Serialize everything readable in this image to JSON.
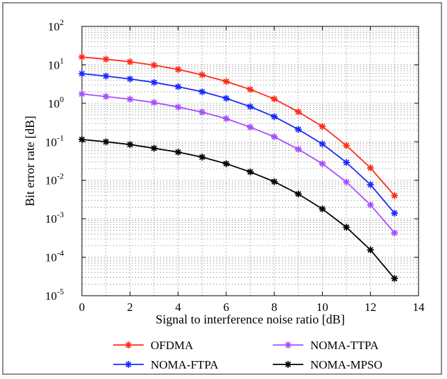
{
  "chart_data": {
    "type": "line",
    "title": "",
    "xlabel": "Signal to interference noise ratio [dB]",
    "ylabel": "Bit error rate [dB]",
    "xlim": [
      0,
      14
    ],
    "ylim": [
      1e-05,
      100
    ],
    "yscale": "log",
    "grid": true,
    "legend_position": "bottom, outside plot, two columns",
    "x_ticks": [
      0,
      2,
      4,
      6,
      8,
      10,
      12,
      14
    ],
    "x_tick_labels": [
      "0",
      "2",
      "4",
      "6",
      "8",
      "10",
      "12",
      "14"
    ],
    "y_ticks": [
      {
        "value": 1e-05,
        "base": "10",
        "exp": "-5"
      },
      {
        "value": 0.0001,
        "base": "10",
        "exp": "-4"
      },
      {
        "value": 0.001,
        "base": "10",
        "exp": "-3"
      },
      {
        "value": 0.01,
        "base": "10",
        "exp": "-2"
      },
      {
        "value": 0.1,
        "base": "10",
        "exp": "-1"
      },
      {
        "value": 1,
        "base": "10",
        "exp": "0"
      },
      {
        "value": 10,
        "base": "10",
        "exp": "1"
      },
      {
        "value": 100,
        "base": "10",
        "exp": "2"
      }
    ],
    "x": [
      0,
      1,
      2,
      3,
      4,
      5,
      6,
      7,
      8,
      9,
      10,
      11,
      12,
      13
    ],
    "series": [
      {
        "name": "OFDMA",
        "color": "#ff2a1a",
        "values": [
          16,
          14,
          12,
          9.8,
          7.6,
          5.5,
          3.7,
          2.3,
          1.3,
          0.6,
          0.25,
          0.08,
          0.021,
          0.004
        ]
      },
      {
        "name": "NOMA-FTPA",
        "color": "#1a2aff",
        "values": [
          5.9,
          5.1,
          4.3,
          3.5,
          2.7,
          2.0,
          1.35,
          0.82,
          0.45,
          0.21,
          0.088,
          0.029,
          0.0077,
          0.0014
        ]
      },
      {
        "name": "NOMA-TTPA",
        "color": "#a64dff",
        "values": [
          1.75,
          1.5,
          1.28,
          1.05,
          0.8,
          0.59,
          0.4,
          0.24,
          0.135,
          0.064,
          0.027,
          0.009,
          0.0023,
          0.00043
        ]
      },
      {
        "name": "NOMA-MPSO",
        "color": "#000000",
        "values": [
          0.115,
          0.1,
          0.085,
          0.068,
          0.054,
          0.04,
          0.027,
          0.0165,
          0.0092,
          0.0044,
          0.0018,
          0.0006,
          0.000155,
          2.8e-05
        ]
      }
    ]
  }
}
